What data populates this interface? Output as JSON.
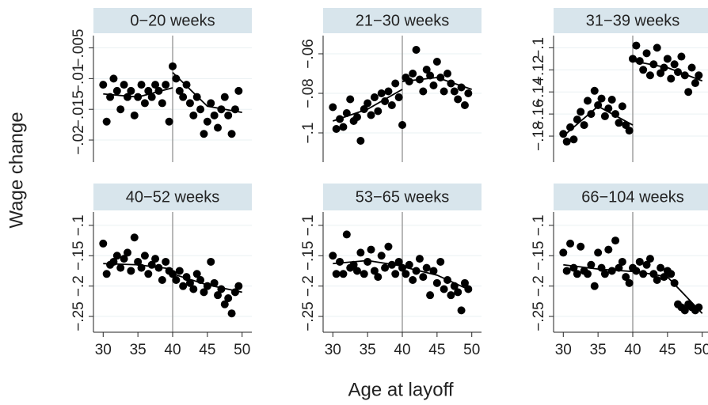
{
  "x_label": "Age at layoff",
  "y_label": "Wage change",
  "chart_data": [
    {
      "type": "scatter",
      "title": "0−20 weeks",
      "color": "#000000",
      "fit_color": "#000000",
      "reference_x": 40,
      "reference_color": "#a0a0a0",
      "header_color": "#d8e5ec",
      "grid": true,
      "show_x_ticks": false,
      "x": [
        30,
        30.5,
        31,
        31.5,
        32,
        32.5,
        33,
        33.5,
        34,
        34.5,
        35,
        35.5,
        36,
        36.5,
        37,
        37.5,
        38,
        38.5,
        39,
        39.5,
        40,
        40.5,
        41,
        41.5,
        42,
        42.5,
        43,
        43.5,
        44,
        44.5,
        45,
        45.5,
        46,
        46.5,
        47,
        47.5,
        48,
        48.5,
        49,
        49.5
      ],
      "values": [
        -0.011,
        -0.017,
        -0.013,
        -0.01,
        -0.012,
        -0.015,
        -0.011,
        -0.013,
        -0.012,
        -0.016,
        -0.013,
        -0.011,
        -0.014,
        -0.012,
        -0.013,
        -0.011,
        -0.012,
        -0.014,
        -0.011,
        -0.017,
        -0.008,
        -0.01,
        -0.012,
        -0.013,
        -0.011,
        -0.014,
        -0.016,
        -0.013,
        -0.015,
        -0.019,
        -0.017,
        -0.014,
        -0.016,
        -0.018,
        -0.015,
        -0.013,
        -0.016,
        -0.019,
        -0.015,
        -0.012
      ],
      "fit_x": [
        30,
        35,
        40,
        40,
        40,
        45,
        50
      ],
      "fit_values": [
        -0.0125,
        -0.013,
        -0.0115,
        null,
        -0.009,
        -0.0145,
        -0.0155
      ],
      "xlim": [
        28.6,
        51.4
      ],
      "xticks": [
        30,
        35,
        40,
        45,
        50
      ],
      "ylim": [
        -0.0236,
        -0.003
      ],
      "yticks": [
        {
          "value": -0.02,
          "label": "−.02"
        },
        {
          "value": -0.015,
          "label": "−.015"
        },
        {
          "value": -0.01,
          "label": "−.01"
        },
        {
          "value": -0.005,
          "label": "−.005"
        }
      ]
    },
    {
      "type": "scatter",
      "title": "21−30 weeks",
      "color": "#000000",
      "fit_color": "#000000",
      "reference_x": 40,
      "reference_color": "#a0a0a0",
      "header_color": "#d8e5ec",
      "grid": true,
      "show_x_ticks": false,
      "x": [
        30,
        30.5,
        31,
        31.5,
        32,
        32.5,
        33,
        33.5,
        34,
        34.5,
        35,
        35.5,
        36,
        36.5,
        37,
        37.5,
        38,
        38.5,
        39,
        39.5,
        40,
        40.5,
        41,
        41.5,
        42,
        42.5,
        43,
        43.5,
        44,
        44.5,
        45,
        45.5,
        46,
        46.5,
        47,
        47.5,
        48,
        48.5,
        49,
        49.5
      ],
      "values": [
        -0.087,
        -0.098,
        -0.093,
        -0.097,
        -0.09,
        -0.083,
        -0.094,
        -0.092,
        -0.104,
        -0.088,
        -0.085,
        -0.091,
        -0.082,
        -0.089,
        -0.08,
        -0.084,
        -0.079,
        -0.086,
        -0.075,
        -0.082,
        -0.096,
        -0.072,
        -0.074,
        -0.07,
        -0.058,
        -0.073,
        -0.079,
        -0.068,
        -0.071,
        -0.076,
        -0.064,
        -0.072,
        -0.079,
        -0.07,
        -0.075,
        -0.079,
        -0.083,
        -0.077,
        -0.086,
        -0.08
      ],
      "fit_x": [
        30,
        35,
        40,
        40,
        40,
        45,
        50
      ],
      "fit_values": [
        -0.094,
        -0.088,
        -0.078,
        null,
        -0.074,
        -0.072,
        -0.078
      ],
      "xlim": [
        28.6,
        51.4
      ],
      "xticks": [
        30,
        35,
        40,
        45,
        50
      ],
      "ylim": [
        -0.1148,
        -0.0508
      ],
      "yticks": [
        {
          "value": -0.1,
          "label": "−.1"
        },
        {
          "value": -0.08,
          "label": "−.08"
        },
        {
          "value": -0.06,
          "label": "−.06"
        }
      ]
    },
    {
      "type": "scatter",
      "title": "31−39 weeks",
      "color": "#000000",
      "fit_color": "#000000",
      "reference_x": 40,
      "reference_color": "#a0a0a0",
      "header_color": "#d8e5ec",
      "grid": true,
      "show_x_ticks": false,
      "x": [
        30,
        30.5,
        31,
        31.5,
        32,
        32.5,
        33,
        33.5,
        34,
        34.5,
        35,
        35.5,
        36,
        36.5,
        37,
        37.5,
        38,
        38.5,
        39,
        39.5,
        40,
        40.5,
        41,
        41.5,
        42,
        42.5,
        43,
        43.5,
        44,
        44.5,
        45,
        45.5,
        46,
        46.5,
        47,
        47.5,
        48,
        48.5,
        49,
        49.5
      ],
      "values": [
        -0.178,
        -0.185,
        -0.172,
        -0.183,
        -0.165,
        -0.158,
        -0.17,
        -0.148,
        -0.16,
        -0.139,
        -0.152,
        -0.146,
        -0.162,
        -0.155,
        -0.147,
        -0.16,
        -0.168,
        -0.153,
        -0.17,
        -0.175,
        -0.11,
        -0.098,
        -0.112,
        -0.12,
        -0.105,
        -0.125,
        -0.115,
        -0.1,
        -0.123,
        -0.118,
        -0.11,
        -0.128,
        -0.115,
        -0.122,
        -0.108,
        -0.125,
        -0.14,
        -0.118,
        -0.132,
        -0.125
      ],
      "fit_x": [
        30,
        35,
        40,
        40,
        40,
        45,
        50
      ],
      "fit_values": [
        -0.18,
        -0.153,
        -0.17,
        null,
        -0.112,
        -0.118,
        -0.13
      ],
      "xlim": [
        28.6,
        51.4
      ],
      "xticks": [
        30,
        35,
        40,
        45,
        50
      ],
      "ylim": [
        -0.2036,
        -0.089
      ],
      "yticks": [
        {
          "value": -0.18,
          "label": "−.18"
        },
        {
          "value": -0.16,
          "label": "−.16"
        },
        {
          "value": -0.14,
          "label": "−.14"
        },
        {
          "value": -0.12,
          "label": "−.12"
        },
        {
          "value": -0.1,
          "label": "−.1"
        }
      ]
    },
    {
      "type": "scatter",
      "title": "40−52 weeks",
      "color": "#000000",
      "fit_color": "#000000",
      "reference_x": 40,
      "reference_color": "#a0a0a0",
      "header_color": "#d8e5ec",
      "grid": true,
      "show_x_ticks": true,
      "x": [
        30,
        30.5,
        31,
        31.5,
        32,
        32.5,
        33,
        33.5,
        34,
        34.5,
        35,
        35.5,
        36,
        36.5,
        37,
        37.5,
        38,
        38.5,
        39,
        39.5,
        40,
        40.5,
        41,
        41.5,
        42,
        42.5,
        43,
        43.5,
        44,
        44.5,
        45,
        45.5,
        46,
        46.5,
        47,
        47.5,
        48,
        48.5,
        49,
        49.5
      ],
      "values": [
        -0.13,
        -0.18,
        -0.165,
        -0.16,
        -0.15,
        -0.17,
        -0.155,
        -0.145,
        -0.175,
        -0.12,
        -0.16,
        -0.17,
        -0.15,
        -0.18,
        -0.165,
        -0.155,
        -0.17,
        -0.19,
        -0.16,
        -0.175,
        -0.18,
        -0.19,
        -0.175,
        -0.2,
        -0.185,
        -0.195,
        -0.205,
        -0.18,
        -0.19,
        -0.21,
        -0.2,
        -0.16,
        -0.195,
        -0.215,
        -0.205,
        -0.23,
        -0.22,
        -0.245,
        -0.21,
        -0.2
      ],
      "fit_x": [
        30,
        35,
        40,
        40,
        40,
        45,
        50
      ],
      "fit_values": [
        -0.163,
        -0.165,
        -0.172,
        null,
        -0.18,
        -0.198,
        -0.21
      ],
      "xlim": [
        28.6,
        51.4
      ],
      "xticks": [
        30,
        35,
        40,
        45,
        50
      ],
      "ylim": [
        -0.276,
        -0.078
      ],
      "yticks": [
        {
          "value": -0.25,
          "label": "−.25"
        },
        {
          "value": -0.2,
          "label": "−.2"
        },
        {
          "value": -0.15,
          "label": "−.15"
        },
        {
          "value": -0.1,
          "label": "−.1"
        }
      ]
    },
    {
      "type": "scatter",
      "title": "53−65 weeks",
      "color": "#000000",
      "fit_color": "#000000",
      "reference_x": 40,
      "reference_color": "#a0a0a0",
      "header_color": "#d8e5ec",
      "grid": true,
      "show_x_ticks": true,
      "x": [
        30,
        30.5,
        31,
        31.5,
        32,
        32.5,
        33,
        33.5,
        34,
        34.5,
        35,
        35.5,
        36,
        36.5,
        37,
        37.5,
        38,
        38.5,
        39,
        39.5,
        40,
        40.5,
        41,
        41.5,
        42,
        42.5,
        43,
        43.5,
        44,
        44.5,
        45,
        45.5,
        46,
        46.5,
        47,
        47.5,
        48,
        48.5,
        49,
        49.5
      ],
      "values": [
        -0.15,
        -0.18,
        -0.16,
        -0.18,
        -0.115,
        -0.17,
        -0.165,
        -0.175,
        -0.145,
        -0.18,
        -0.16,
        -0.14,
        -0.175,
        -0.185,
        -0.15,
        -0.17,
        -0.135,
        -0.165,
        -0.18,
        -0.16,
        -0.17,
        -0.18,
        -0.165,
        -0.19,
        -0.175,
        -0.155,
        -0.185,
        -0.17,
        -0.215,
        -0.175,
        -0.195,
        -0.16,
        -0.205,
        -0.19,
        -0.215,
        -0.2,
        -0.21,
        -0.24,
        -0.195,
        -0.205
      ],
      "fit_x": [
        30,
        35,
        40,
        40,
        40,
        45,
        50
      ],
      "fit_values": [
        -0.163,
        -0.158,
        -0.167,
        null,
        -0.168,
        -0.182,
        -0.208
      ],
      "xlim": [
        28.6,
        51.4
      ],
      "xticks": [
        30,
        35,
        40,
        45,
        50
      ],
      "ylim": [
        -0.276,
        -0.078
      ],
      "yticks": [
        {
          "value": -0.25,
          "label": "−.25"
        },
        {
          "value": -0.2,
          "label": "−.2"
        },
        {
          "value": -0.15,
          "label": "−.15"
        },
        {
          "value": -0.1,
          "label": "−.1"
        }
      ]
    },
    {
      "type": "scatter",
      "title": "66−104 weeks",
      "color": "#000000",
      "fit_color": "#000000",
      "reference_x": 40,
      "reference_color": "#a0a0a0",
      "header_color": "#d8e5ec",
      "grid": true,
      "show_x_ticks": true,
      "x": [
        30,
        30.5,
        31,
        31.5,
        32,
        32.5,
        33,
        33.5,
        34,
        34.5,
        35,
        35.5,
        36,
        36.5,
        37,
        37.5,
        38,
        38.5,
        39,
        39.5,
        40,
        40.5,
        41,
        41.5,
        42,
        42.5,
        43,
        43.5,
        44,
        44.5,
        45,
        45.5,
        46,
        46.5,
        47,
        47.5,
        48,
        48.5,
        49,
        49.5
      ],
      "values": [
        -0.145,
        -0.175,
        -0.13,
        -0.17,
        -0.18,
        -0.135,
        -0.175,
        -0.18,
        -0.165,
        -0.2,
        -0.145,
        -0.17,
        -0.18,
        -0.14,
        -0.175,
        -0.125,
        -0.17,
        -0.16,
        -0.185,
        -0.195,
        -0.17,
        -0.175,
        -0.16,
        -0.18,
        -0.165,
        -0.155,
        -0.18,
        -0.19,
        -0.17,
        -0.185,
        -0.175,
        -0.18,
        -0.195,
        -0.23,
        -0.235,
        -0.24,
        -0.23,
        -0.235,
        -0.24,
        -0.235
      ],
      "fit_x": [
        30,
        35,
        40,
        40,
        40,
        45,
        47.5,
        50
      ],
      "fit_values": [
        -0.165,
        -0.172,
        -0.176,
        null,
        -0.175,
        -0.185,
        -0.215,
        -0.245
      ],
      "xlim": [
        28.6,
        51.4
      ],
      "xticks": [
        30,
        35,
        40,
        45,
        50
      ],
      "ylim": [
        -0.276,
        -0.078
      ],
      "yticks": [
        {
          "value": -0.25,
          "label": "−.25"
        },
        {
          "value": -0.2,
          "label": "−.2"
        },
        {
          "value": -0.15,
          "label": "−.15"
        },
        {
          "value": -0.1,
          "label": "−.1"
        }
      ]
    }
  ]
}
